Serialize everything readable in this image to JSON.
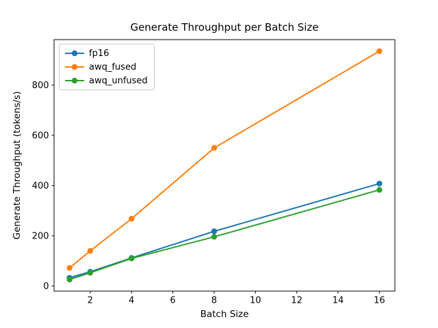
{
  "chart_data": {
    "type": "line",
    "title": "Generate Throughput per Batch Size",
    "xlabel": "Batch Size",
    "ylabel": "Generate Throughput (tokens/s)",
    "x": [
      1,
      2,
      4,
      8,
      16
    ],
    "series": [
      {
        "name": "fp16",
        "color": "#1f77b4",
        "values": [
          33,
          57,
          112,
          218,
          408
        ]
      },
      {
        "name": "awq_fused",
        "color": "#ff7f0e",
        "values": [
          72,
          140,
          268,
          550,
          935
        ]
      },
      {
        "name": "awq_unfused",
        "color": "#2ca02c",
        "values": [
          26,
          53,
          110,
          196,
          383
        ]
      }
    ],
    "xticks": [
      2,
      4,
      6,
      8,
      10,
      12,
      14,
      16
    ],
    "yticks": [
      0,
      200,
      400,
      600,
      800
    ],
    "xlim": [
      0.25,
      16.75
    ],
    "ylim": [
      -20,
      981
    ],
    "legend_position": "upper left",
    "grid": false,
    "marker": "o",
    "axis_color": "#000000",
    "background_color": "#ffffff"
  }
}
